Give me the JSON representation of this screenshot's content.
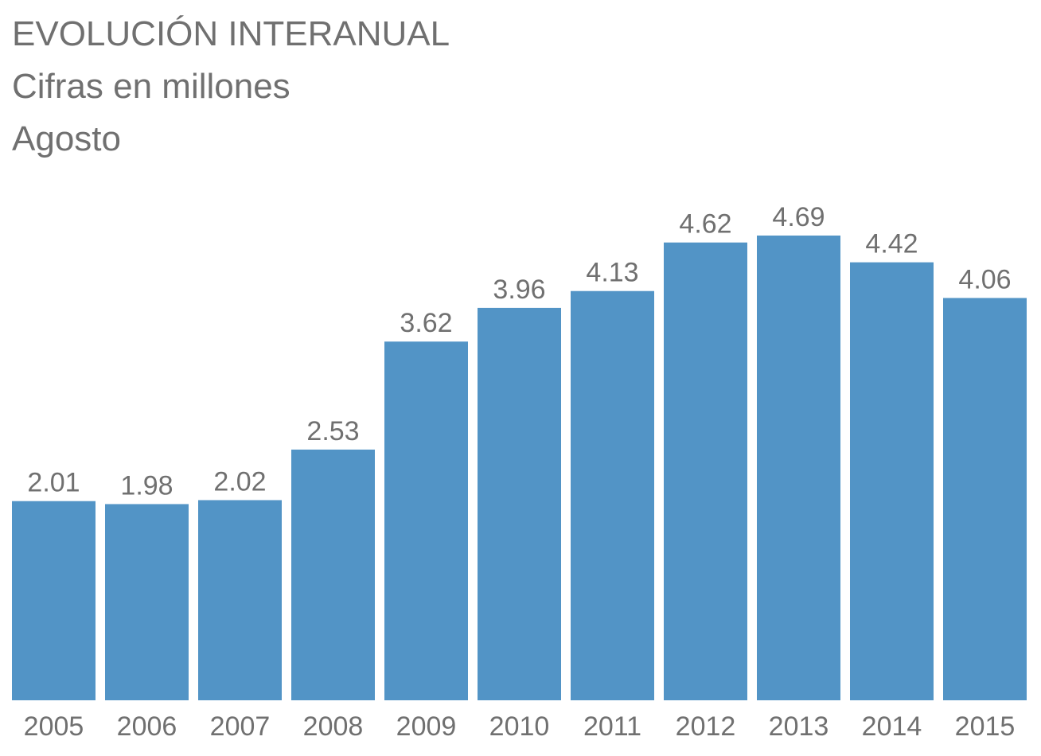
{
  "header": {
    "title": "EVOLUCIÓN INTERANUAL",
    "subtitle": "Cifras en millones",
    "period": "Agosto"
  },
  "colors": {
    "bar": "#5294c6",
    "text": "#707070"
  },
  "chart_data": {
    "type": "bar",
    "title": "EVOLUCIÓN INTERANUAL",
    "subtitle": "Cifras en millones",
    "categories": [
      "2005",
      "2006",
      "2007",
      "2008",
      "2009",
      "2010",
      "2011",
      "2012",
      "2013",
      "2014",
      "2015"
    ],
    "values": [
      2.01,
      1.98,
      2.02,
      2.53,
      3.62,
      3.96,
      4.13,
      4.62,
      4.69,
      4.42,
      4.06
    ],
    "value_labels": [
      "2.01",
      "1.98",
      "2.02",
      "2.53",
      "3.62",
      "3.96",
      "4.13",
      "4.62",
      "4.69",
      "4.42",
      "4.06"
    ],
    "xlabel": "",
    "ylabel": "",
    "ylim": [
      0,
      4.69
    ],
    "grid": false,
    "legend": "none"
  }
}
